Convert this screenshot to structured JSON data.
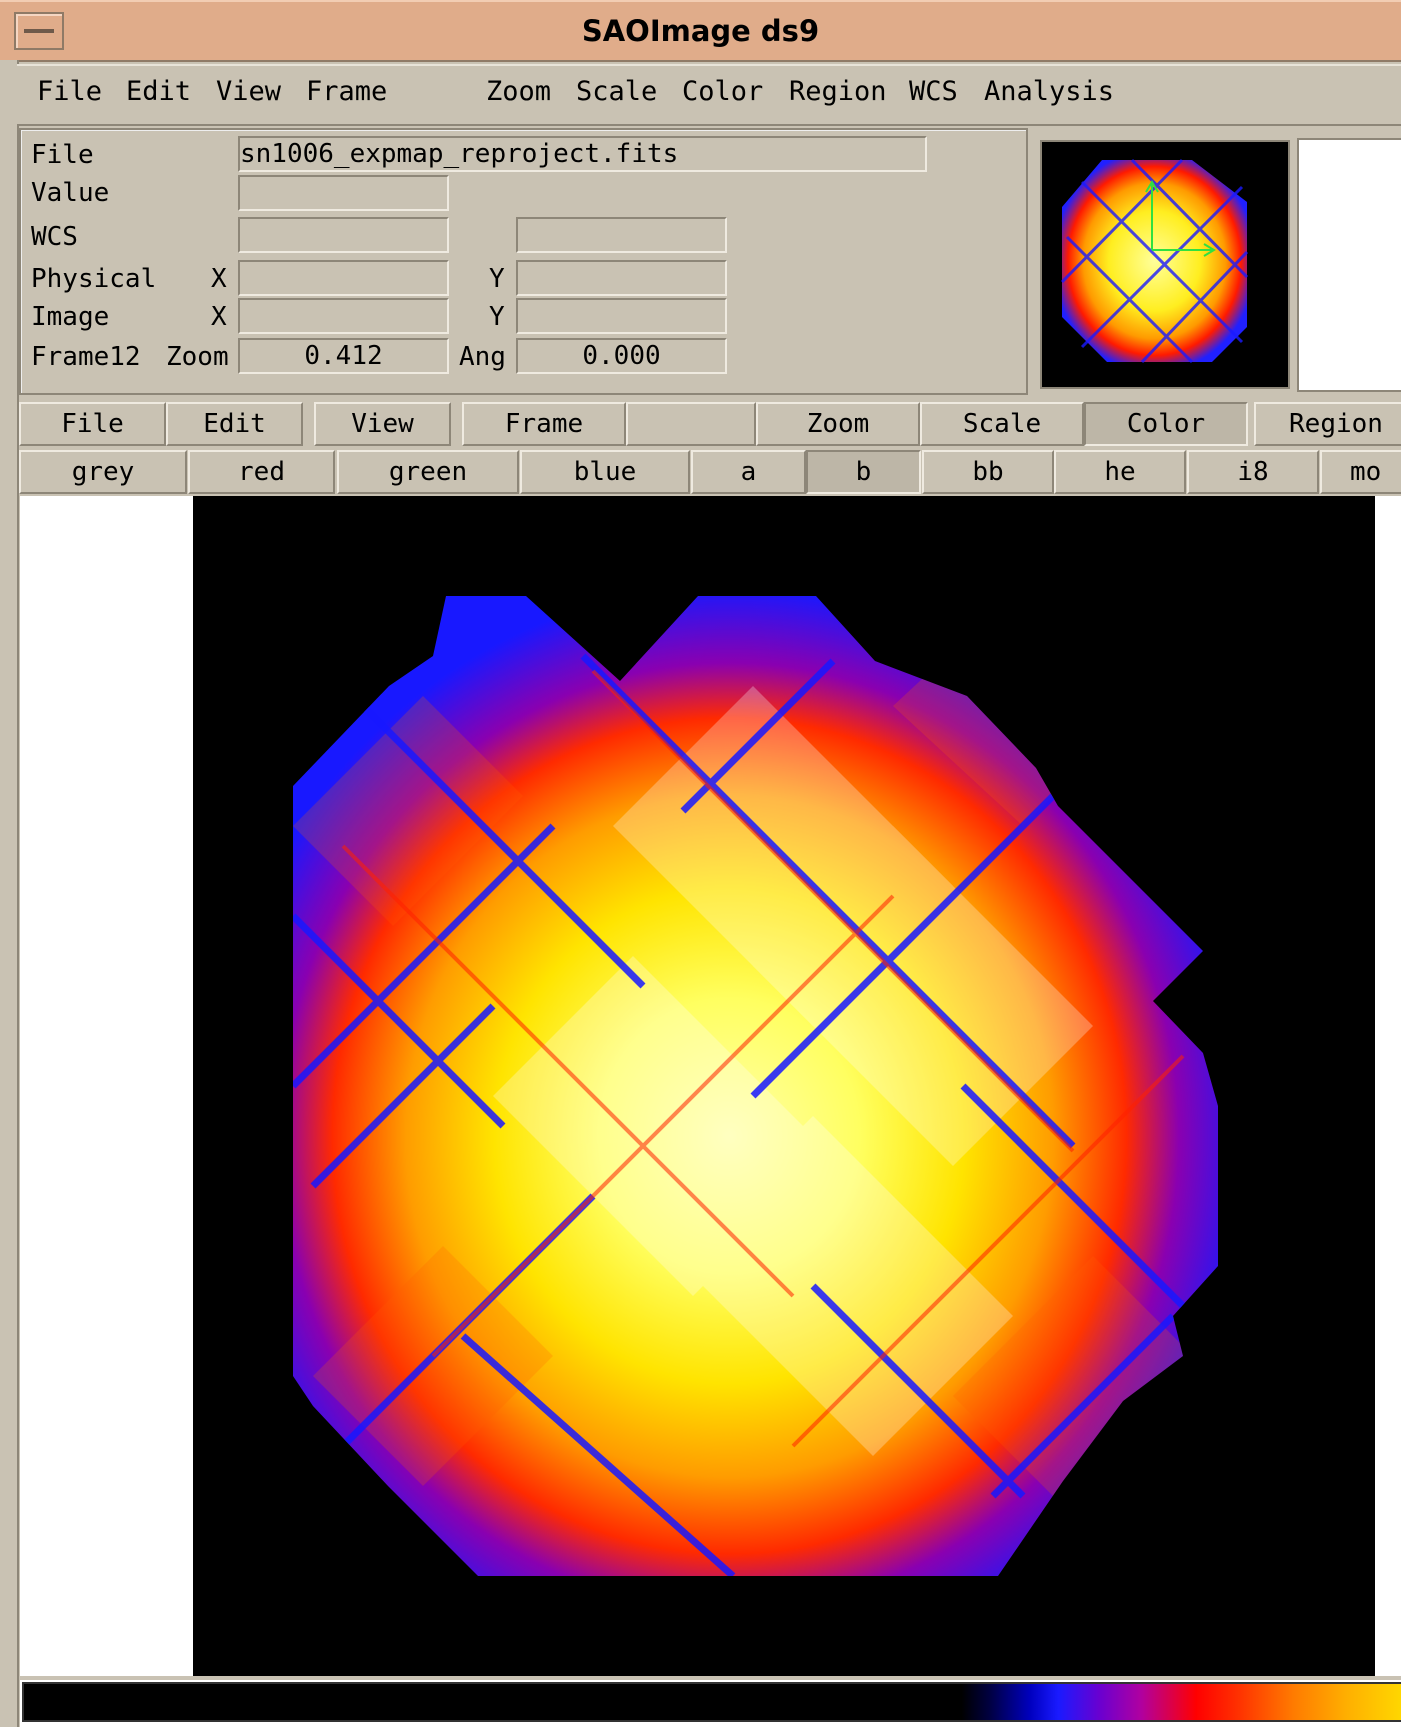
{
  "window": {
    "title": "SAOImage ds9"
  },
  "menubar": [
    "File",
    "Edit",
    "View",
    "Frame",
    "Zoom",
    "Scale",
    "Color",
    "Region",
    "WCS",
    "Analysis"
  ],
  "info": {
    "file_label": "File",
    "file_value": "sn1006_expmap_reproject.fits",
    "value_label": "Value",
    "wcs_label": "WCS",
    "physical_label": "Physical",
    "image_label": "Image",
    "x_label": "X",
    "y_label": "Y",
    "frame_label": "Frame12",
    "zoom_label": "Zoom",
    "zoom_value": "0.412",
    "ang_label": "Ang",
    "ang_value": "0.000"
  },
  "buttonbar": [
    "File",
    "Edit",
    "View",
    "Frame",
    "",
    "Zoom",
    "Scale",
    "Color",
    "Region"
  ],
  "buttonbar_active": "Color",
  "colormaps": [
    "grey",
    "red",
    "green",
    "blue",
    "a",
    "b",
    "bb",
    "he",
    "i8",
    "mo"
  ],
  "colormap_active": "b",
  "colors": {
    "title_bg": "#e0ac8a",
    "panel_bg": "#c9c2b3",
    "image_bg": "#000000"
  },
  "icons": {
    "window_menu": "window-menu-icon",
    "compass": "compass-icon"
  }
}
